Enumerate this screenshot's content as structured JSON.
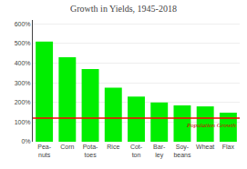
{
  "chart_data": {
    "type": "bar",
    "title": "Growth in Yields, 1945-2018",
    "categories": [
      "Pea-\nnuts",
      "Corn",
      "Pota-\ntoes",
      "Rice",
      "Cot-\nton",
      "Bar-\nley",
      "Soy-\nbeans",
      "Wheat",
      "Flax"
    ],
    "values": [
      510,
      430,
      370,
      275,
      230,
      200,
      185,
      180,
      148
    ],
    "color": "#00ee00",
    "ylim": [
      0,
      620
    ],
    "yticks": [
      {
        "value": 0,
        "label": "0%"
      },
      {
        "value": 100,
        "label": "100%"
      },
      {
        "value": 200,
        "label": "200%"
      },
      {
        "value": 300,
        "label": "300%"
      },
      {
        "value": 400,
        "label": "400%"
      },
      {
        "value": 500,
        "label": "500%"
      },
      {
        "value": 600,
        "label": "600%"
      }
    ],
    "grid": true,
    "hlines": [
      {
        "y": 120,
        "color": "#ff0000",
        "label": "Population Growth",
        "label_color": "#cc0000"
      }
    ]
  }
}
